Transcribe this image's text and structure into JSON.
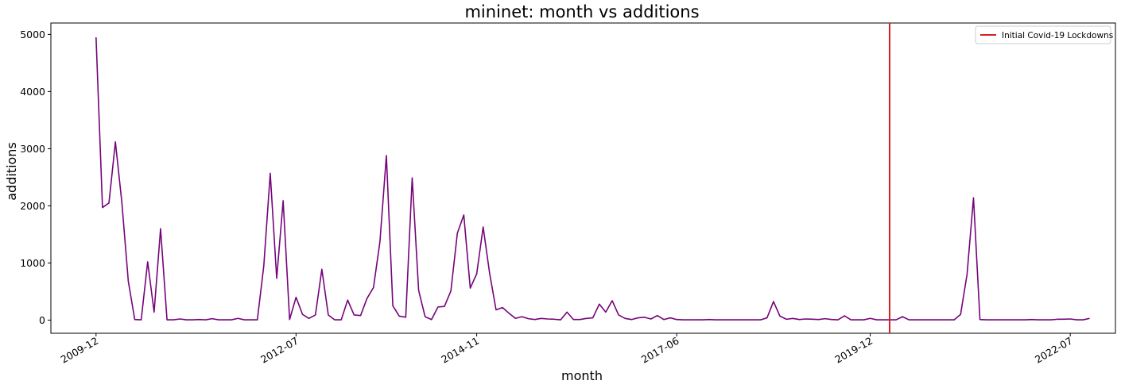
{
  "chart_data": {
    "type": "line",
    "title": "mininet: month vs additions",
    "xlabel": "month",
    "ylabel": "additions",
    "x_start": "2009-12",
    "x_end": "2022-07",
    "xlim": [
      "2009-05",
      "2023-02"
    ],
    "ylim": [
      -230,
      5200
    ],
    "yticks": [
      0,
      1000,
      2000,
      3000,
      4000,
      5000
    ],
    "xticks": [
      "2009-12",
      "2012-07",
      "2014-11",
      "2017-06",
      "2019-12",
      "2022-07"
    ],
    "grid": false,
    "legend_position": "top-right",
    "series": [
      {
        "color": "#75047a",
        "values": [
          4950,
          1970,
          2050,
          3120,
          2060,
          680,
          10,
          5,
          1020,
          140,
          1600,
          5,
          5,
          20,
          5,
          5,
          10,
          5,
          25,
          5,
          5,
          5,
          30,
          5,
          5,
          5,
          950,
          2570,
          730,
          2090,
          10,
          400,
          100,
          30,
          90,
          890,
          90,
          5,
          5,
          350,
          90,
          80,
          380,
          570,
          1370,
          2880,
          250,
          70,
          50,
          2490,
          520,
          60,
          10,
          230,
          240,
          510,
          1520,
          1840,
          560,
          810,
          1630,
          820,
          180,
          220,
          120,
          30,
          60,
          25,
          10,
          30,
          20,
          15,
          5,
          140,
          10,
          10,
          30,
          40,
          280,
          140,
          340,
          90,
          30,
          10,
          40,
          50,
          20,
          80,
          10,
          40,
          10,
          5,
          5,
          5,
          5,
          10,
          5,
          5,
          5,
          5,
          5,
          5,
          5,
          5,
          40,
          325,
          70,
          15,
          30,
          10,
          20,
          15,
          10,
          25,
          10,
          5,
          75,
          5,
          5,
          5,
          30,
          5,
          5,
          5,
          5,
          60,
          5,
          5,
          5,
          5,
          5,
          5,
          5,
          5,
          100,
          800,
          2140,
          10,
          5,
          5,
          5,
          5,
          5,
          5,
          5,
          10,
          5,
          5,
          5,
          15,
          15,
          20,
          5,
          5,
          30
        ]
      }
    ],
    "annotations": [
      {
        "type": "vline",
        "x": "2020-03",
        "label": "Initial Covid-19 Lockdowns",
        "color": "#d62020"
      }
    ]
  }
}
